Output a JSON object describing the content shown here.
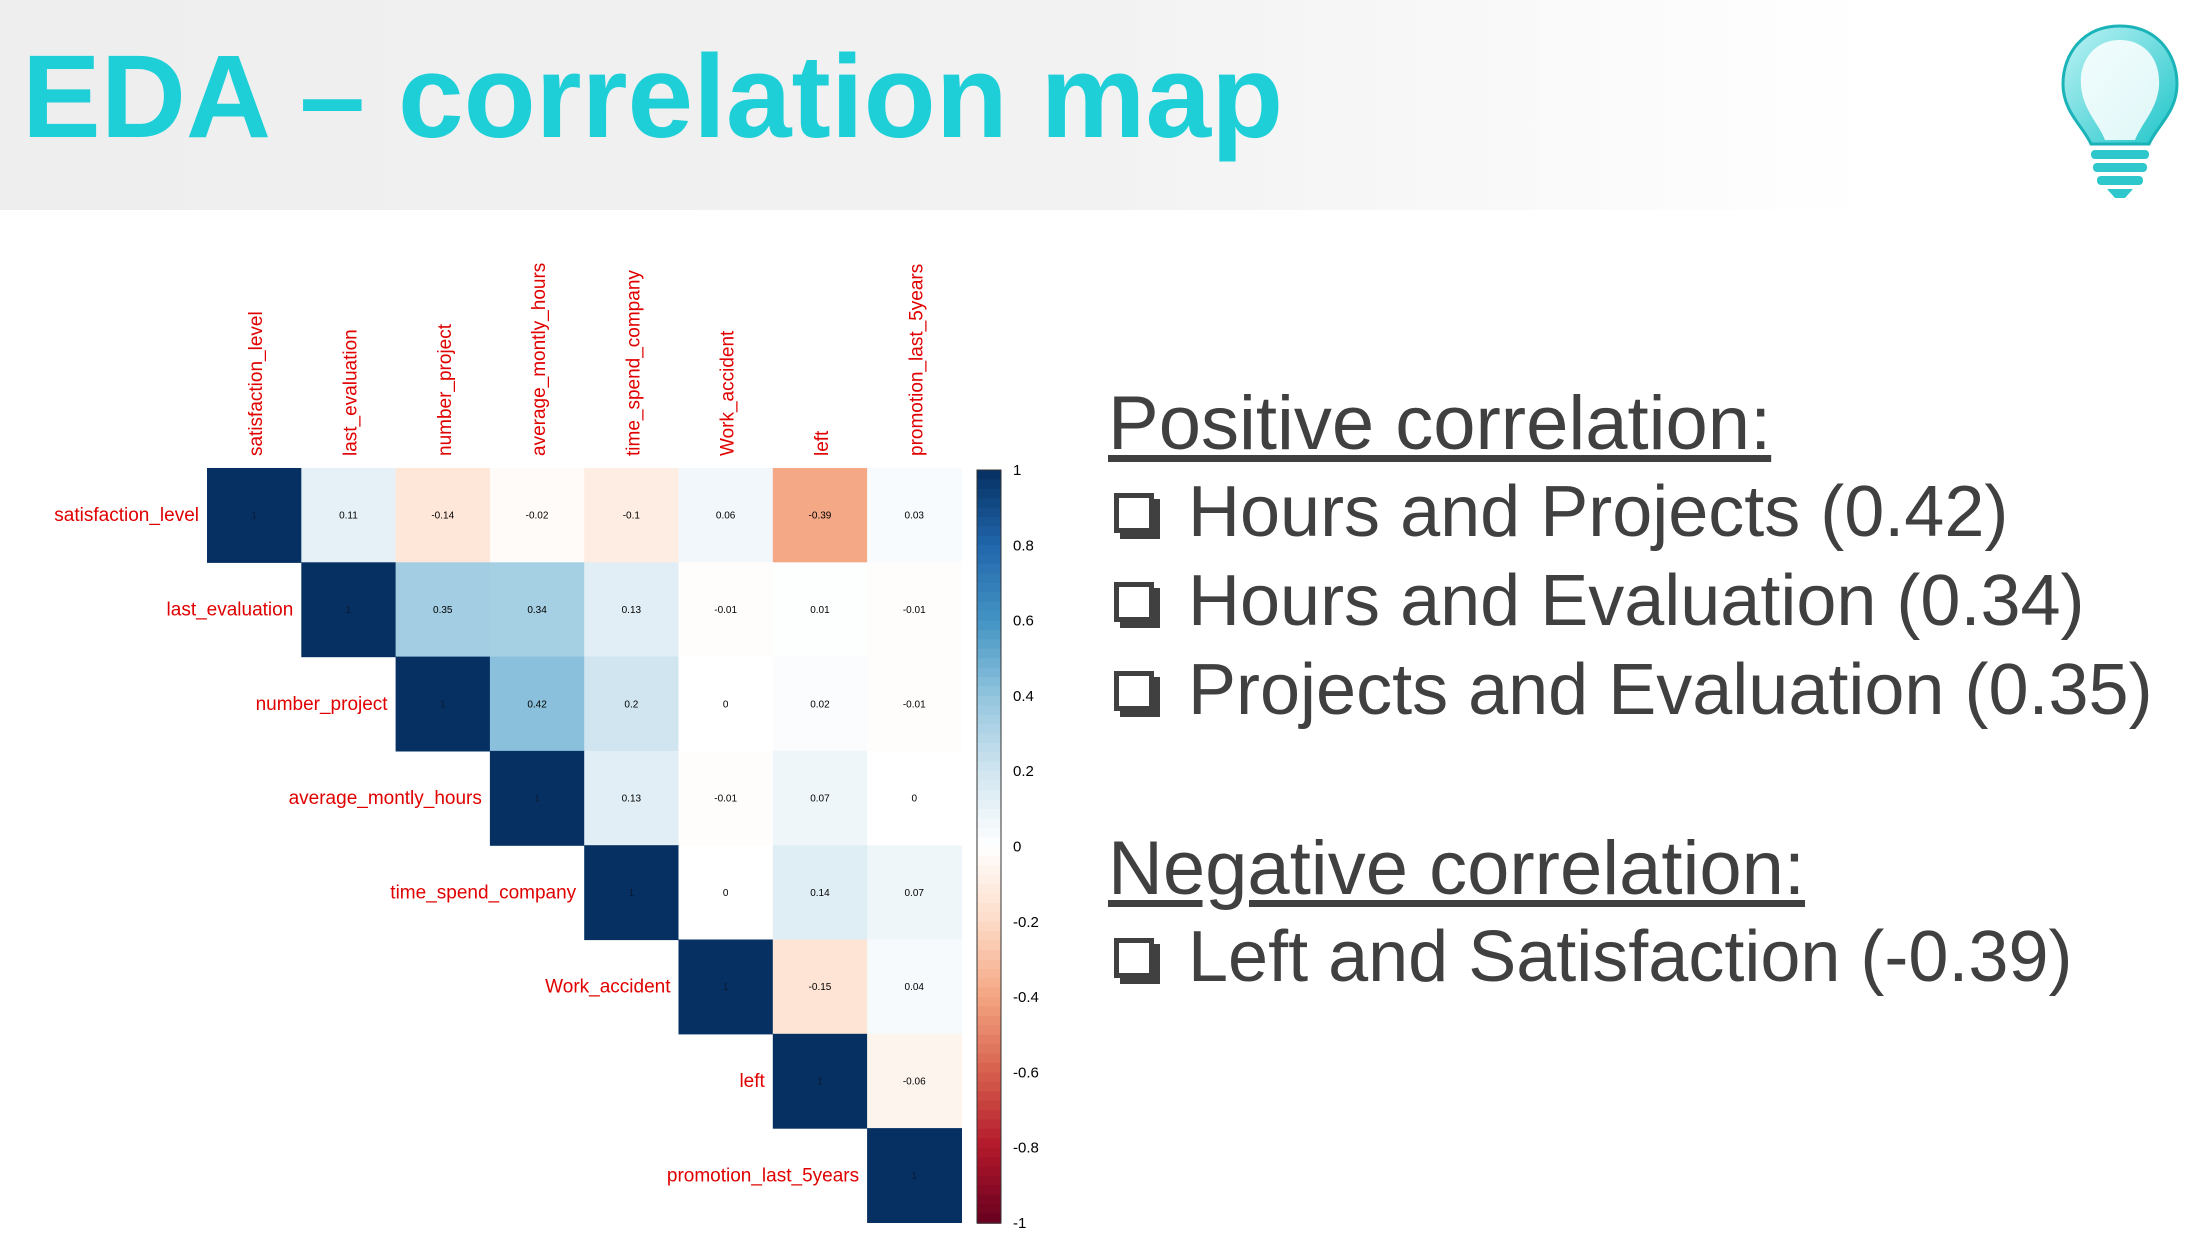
{
  "title": "EDA – correlation map",
  "icons": {
    "logo": "lightbulb-icon",
    "bullet": "checkbox-icon"
  },
  "colors": {
    "title": "#1ecfd8",
    "labels": "#e00000",
    "text": "#404040",
    "strong_positive": "#053061",
    "zero": "#ffffff",
    "strong_negative": "#67001f"
  },
  "positive": {
    "heading": "Positive correlation:",
    "items": [
      "Hours and Projects (0.42)",
      "Hours and Evaluation (0.34)",
      "Projects and Evaluation (0.35)"
    ]
  },
  "negative": {
    "heading": "Negative correlation:",
    "items": [
      "Left and Satisfaction (-0.39)"
    ]
  },
  "chart_data": {
    "type": "heatmap",
    "variant": "upper-triangular correlation matrix",
    "variables": [
      "satisfaction_level",
      "last_evaluation",
      "number_project",
      "average_montly_hours",
      "time_spend_company",
      "Work_accident",
      "left",
      "promotion_last_5years"
    ],
    "matrix": [
      [
        1,
        0.11,
        -0.14,
        -0.02,
        -0.1,
        0.06,
        -0.39,
        0.03
      ],
      [
        null,
        1,
        0.35,
        0.34,
        0.13,
        -0.01,
        0.01,
        -0.01
      ],
      [
        null,
        null,
        1,
        0.42,
        0.2,
        0,
        0.02,
        -0.01
      ],
      [
        null,
        null,
        null,
        1,
        0.13,
        -0.01,
        0.07,
        0
      ],
      [
        null,
        null,
        null,
        null,
        1,
        0,
        0.14,
        0.07
      ],
      [
        null,
        null,
        null,
        null,
        null,
        1,
        -0.15,
        0.04
      ],
      [
        null,
        null,
        null,
        null,
        null,
        null,
        1,
        -0.06
      ],
      [
        null,
        null,
        null,
        null,
        null,
        null,
        null,
        1
      ]
    ],
    "colorbar": {
      "range": [
        -1,
        1
      ],
      "ticks": [
        "1",
        "0.8",
        "0.6",
        "0.4",
        "0.2",
        "0",
        "-0.2",
        "-0.4",
        "-0.6",
        "-0.8",
        "-1"
      ]
    }
  }
}
